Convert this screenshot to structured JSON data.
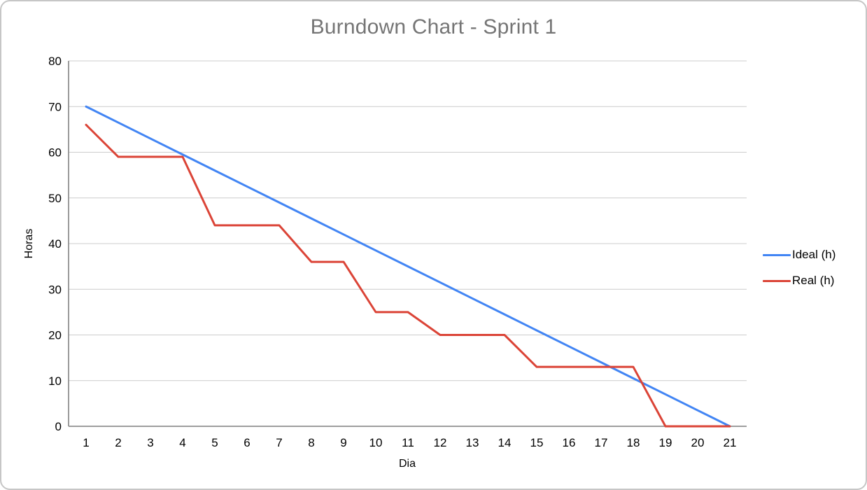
{
  "title": "Burndown Chart - Sprint 1",
  "chart_data": {
    "type": "line",
    "title": "Burndown Chart - Sprint 1",
    "x": [
      1,
      2,
      3,
      4,
      5,
      6,
      7,
      8,
      9,
      10,
      11,
      12,
      13,
      14,
      15,
      16,
      17,
      18,
      19,
      20,
      21
    ],
    "series": [
      {
        "name": "Ideal (h)",
        "color": "#4285F4",
        "values": [
          70,
          66.5,
          63,
          59.5,
          56,
          52.5,
          49,
          45.5,
          42,
          38.5,
          35,
          31.5,
          28,
          24.5,
          21,
          17.5,
          14,
          10.5,
          7,
          3.5,
          0
        ]
      },
      {
        "name": "Real (h)",
        "color": "#DB4437",
        "values": [
          66,
          59,
          59,
          59,
          44,
          44,
          44,
          36,
          36,
          25,
          25,
          20,
          20,
          20,
          13,
          13,
          13,
          13,
          0,
          0,
          0
        ]
      }
    ],
    "xlabel": "Dia",
    "ylabel": "Horas",
    "ylim": [
      0,
      80
    ],
    "y_ticks": [
      0,
      10,
      20,
      30,
      40,
      50,
      60,
      70,
      80
    ],
    "grid": true,
    "legend_position": "right"
  },
  "colors": {
    "ideal_line": "#4285F4",
    "real_line": "#DB4437",
    "title_text": "#757575",
    "gridline": "#cccccc",
    "axis_line": "#909090",
    "tick_text": "#000000",
    "card_border": "#c6c6c6"
  }
}
